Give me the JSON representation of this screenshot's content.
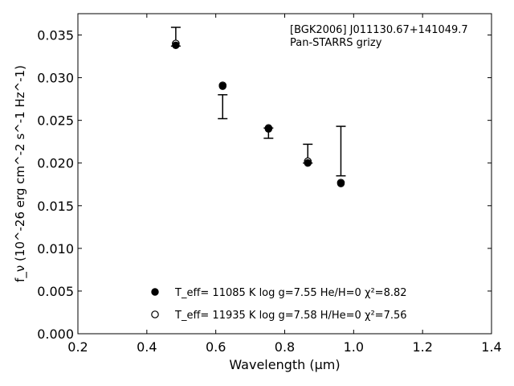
{
  "chart_data": {
    "type": "scatter",
    "annotation": [
      "[BGK2006] J011130.67+141049.7",
      "Pan-STARRS grizy"
    ],
    "xlabel": "Wavelength (μm)",
    "ylabel": "f_ν (10^-26 erg cm^-2 s^-1 Hz^-1)",
    "xlim": [
      0.2,
      1.4
    ],
    "ylim": [
      0.0,
      0.0375
    ],
    "x_ticks": [
      0.2,
      0.4,
      0.6,
      0.8,
      1.0,
      1.2,
      1.4
    ],
    "x_tick_labels": [
      "0.2",
      "0.4",
      "0.6",
      "0.8",
      "1.0",
      "1.2",
      "1.4"
    ],
    "y_ticks": [
      0.0,
      0.005,
      0.01,
      0.015,
      0.02,
      0.025,
      0.03,
      0.035
    ],
    "y_tick_labels": [
      "0.000",
      "0.005",
      "0.010",
      "0.015",
      "0.020",
      "0.025",
      "0.030",
      "0.035"
    ],
    "grid": false,
    "legend_position": "bottom-center",
    "observed": {
      "x": [
        0.484,
        0.62,
        0.753,
        0.867,
        0.963
      ],
      "y": [
        0.0348,
        0.0266,
        0.0235,
        0.0211,
        0.0214
      ],
      "yerr": [
        0.0011,
        0.0014,
        0.0006,
        0.0011,
        0.0029
      ]
    },
    "series": [
      {
        "name": "T_eff= 11085 K  log g=7.55  He/H=0  χ²=8.82",
        "marker": "filled-circle",
        "x": [
          0.484,
          0.62,
          0.753,
          0.867,
          0.963
        ],
        "y": [
          0.0338,
          0.029,
          0.024,
          0.02,
          0.0176
        ]
      },
      {
        "name": "T_eff= 11935 K  log g=7.58  H/He=0  χ²=7.56",
        "marker": "open-circle",
        "x": [
          0.484,
          0.62,
          0.753,
          0.867,
          0.963
        ],
        "y": [
          0.034,
          0.0291,
          0.0241,
          0.0202,
          0.0177
        ]
      }
    ]
  }
}
